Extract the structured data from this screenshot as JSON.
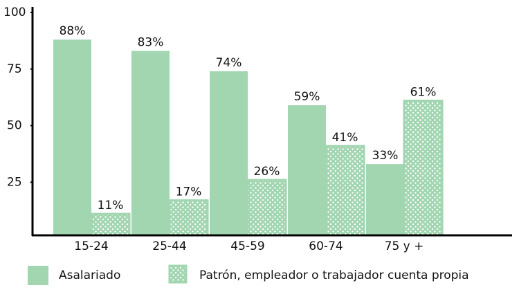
{
  "chart_data": {
    "type": "bar",
    "categories": [
      "15-24",
      "25-44",
      "45-59",
      "60-74",
      "75 y +"
    ],
    "series": [
      {
        "name": "Asalariado",
        "color": "#a1d6b1",
        "values": [
          88,
          83,
          74,
          59,
          33
        ],
        "value_labels": [
          "88%",
          "83%",
          "74%",
          "59%",
          "33%"
        ]
      },
      {
        "name": "Patrón, empleador o trabajador cuenta propia",
        "color": "#a1d6b1",
        "pattern": "dots",
        "values": [
          11,
          17,
          26,
          41,
          61
        ],
        "value_labels": [
          "11%",
          "17%",
          "26%",
          "41%",
          "61%"
        ]
      }
    ],
    "ylim": [
      0,
      100
    ],
    "yticks": [
      25,
      50,
      75,
      100
    ],
    "grid": false,
    "legend": "bottom"
  }
}
